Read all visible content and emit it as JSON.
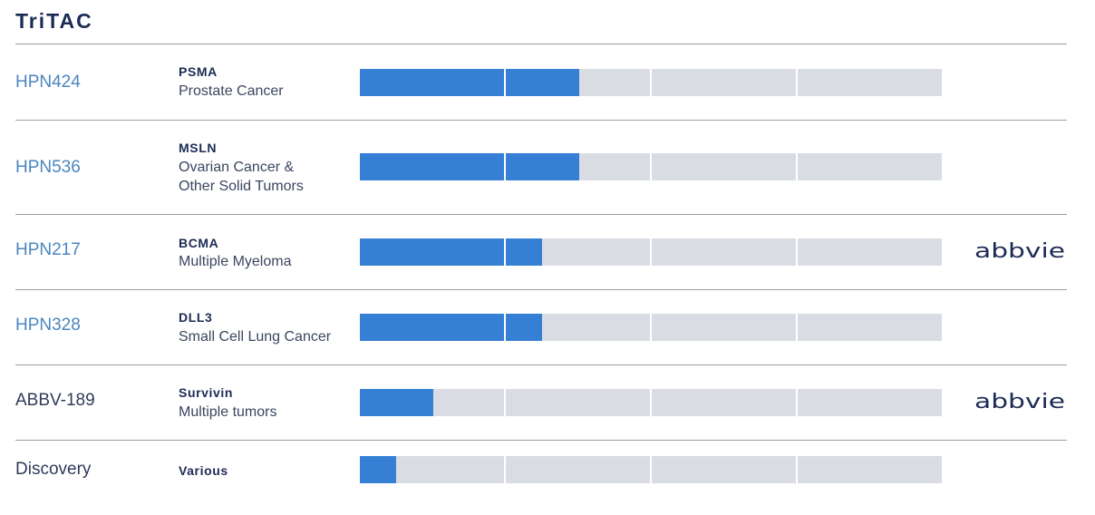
{
  "title": "TriTAC",
  "colors": {
    "title": "#1c2b55",
    "program_link": "#4a86c0",
    "program_plain": "#2f3b58",
    "fill": "#3580d4",
    "track": "#d9dde3",
    "rule": "#9a9ea6"
  },
  "programs": [
    {
      "name": "HPN424",
      "linked": true,
      "target": "PSMA",
      "indication": [
        "Prostate Cancer"
      ],
      "progress_segments": 1.5,
      "partner": ""
    },
    {
      "name": "HPN536",
      "linked": true,
      "target": "MSLN",
      "indication": [
        "Ovarian Cancer &",
        "Other Solid Tumors"
      ],
      "progress_segments": 1.5,
      "partner": ""
    },
    {
      "name": "HPN217",
      "linked": true,
      "target": "BCMA",
      "indication": [
        "Multiple Myeloma"
      ],
      "progress_segments": 1.25,
      "partner": "abbvie"
    },
    {
      "name": "HPN328",
      "linked": true,
      "target": "DLL3",
      "indication": [
        "Small Cell Lung Cancer"
      ],
      "progress_segments": 1.25,
      "partner": ""
    },
    {
      "name": "ABBV-189",
      "linked": false,
      "target": "Survivin",
      "indication": [
        "Multiple tumors"
      ],
      "progress_segments": 0.5,
      "partner": "abbvie"
    },
    {
      "name": "Discovery",
      "linked": false,
      "target": "Various",
      "indication": [],
      "progress_segments": 0.25,
      "partner": ""
    }
  ],
  "total_segments": 4
}
